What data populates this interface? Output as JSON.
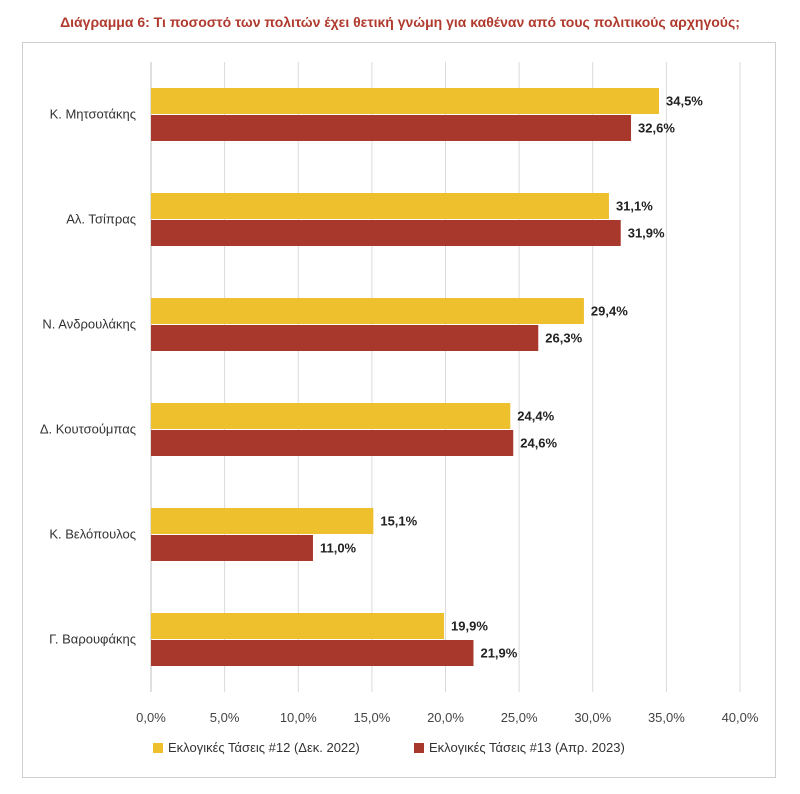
{
  "title": "Διάγραμμα 6: Τι ποσοστό των πολιτών έχει θετική γνώμη για καθέναν από τους πολιτικούς αρχηγούς;",
  "chart_data": {
    "type": "bar",
    "orientation": "horizontal",
    "categories": [
      "Κ. Μητσοτάκης",
      "Αλ. Τσίπρας",
      "Ν. Ανδρουλάκης",
      "Δ. Κουτσούμπας",
      "Κ. Βελόπουλος",
      "Γ. Βαρουφάκης"
    ],
    "series": [
      {
        "name": "Εκλογικές Τάσεις #12 (Δεκ. 2022)",
        "color": "#EEC02E",
        "values": [
          34.5,
          31.1,
          29.4,
          24.4,
          15.1,
          19.9
        ],
        "labels": [
          "34,5%",
          "31,1%",
          "29,4%",
          "24,4%",
          "15,1%",
          "19,9%"
        ]
      },
      {
        "name": "Εκλογικές Τάσεις #13 (Απρ. 2023)",
        "color": "#A8372C",
        "values": [
          32.6,
          31.9,
          26.3,
          24.6,
          11.0,
          21.9
        ],
        "labels": [
          "32,6%",
          "31,9%",
          "26,3%",
          "24,6%",
          "11,0%",
          "21,9%"
        ]
      }
    ],
    "xlim": [
      0,
      40
    ],
    "ticks": [
      0,
      5,
      10,
      15,
      20,
      25,
      30,
      35,
      40
    ],
    "tick_labels": [
      "0,0%",
      "5,0%",
      "10,0%",
      "15,0%",
      "20,0%",
      "25,0%",
      "30,0%",
      "35,0%",
      "40,0%"
    ],
    "grid": true,
    "legend_position": "bottom"
  }
}
